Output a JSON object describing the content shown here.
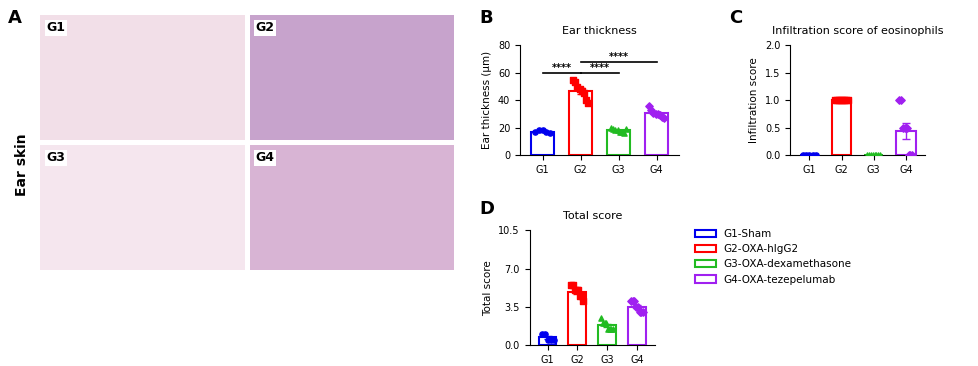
{
  "panel_A": {
    "label": "A",
    "row_label": "Ear skin",
    "images": [
      "G1",
      "G2",
      "G3",
      "G4"
    ]
  },
  "groups": [
    {
      "name": "G1-Sham",
      "color": "#0000ee",
      "marker": "circle"
    },
    {
      "name": "G2-OXA-hIgG2",
      "color": "#ff0000",
      "marker": "square"
    },
    {
      "name": "G3-OXA-dexamethasone",
      "color": "#22bb22",
      "marker": "triangle"
    },
    {
      "name": "G4-OXA-tezepelumab",
      "color": "#a020f0",
      "marker": "diamond"
    }
  ],
  "chart_data": [
    {
      "type": "bar",
      "panel": "B",
      "title": "Ear thickness",
      "y_label": "Ear thickness (μm)",
      "categories": [
        "G1",
        "G2",
        "G3",
        "G4"
      ],
      "values": [
        17.2,
        47.0,
        18.0,
        30.5
      ],
      "errors": [
        0.5,
        2.3,
        0.5,
        1.1
      ],
      "points": [
        [
          17,
          18,
          18,
          17,
          16
        ],
        [
          55,
          53,
          50,
          48,
          47,
          45,
          40,
          38
        ],
        [
          20,
          19,
          18,
          18,
          17,
          17,
          16,
          19
        ],
        [
          36,
          33,
          31,
          30,
          30,
          29,
          28,
          27
        ]
      ],
      "ylim": [
        0,
        80
      ],
      "yticks": [
        0,
        20,
        40,
        60,
        80
      ],
      "significance": [
        {
          "pair": [
            "G1",
            "G2"
          ],
          "label": "****"
        },
        {
          "pair": [
            "G2",
            "G3"
          ],
          "label": "****"
        },
        {
          "pair": [
            "G2",
            "G4"
          ],
          "label": "****"
        }
      ]
    },
    {
      "type": "bar",
      "panel": "C",
      "title": "Infiltration score of eosinophils",
      "y_label": "Infiltration score",
      "categories": [
        "G1",
        "G2",
        "G3",
        "G4"
      ],
      "values": [
        0.0,
        1.0,
        0.0,
        0.44
      ],
      "errors": [
        0.0,
        0.0,
        0.0,
        0.15
      ],
      "points": [
        [
          0,
          0,
          0,
          0,
          0
        ],
        [
          1,
          1,
          1,
          1,
          1,
          1,
          1,
          1
        ],
        [
          0,
          0,
          0,
          0,
          0,
          0,
          0,
          0
        ],
        [
          1,
          1,
          0.5,
          0.5,
          0.5,
          0,
          0,
          0
        ]
      ],
      "ylim": [
        0,
        2.0
      ],
      "yticks": [
        {
          "value": 0,
          "label": "0.0"
        },
        {
          "value": 0.5,
          "label": "0.5"
        },
        {
          "value": 1.0,
          "label": "1.0"
        },
        {
          "value": 1.5,
          "label": "1.5"
        },
        {
          "value": 2.0,
          "label": "2.0"
        }
      ]
    },
    {
      "type": "bar",
      "panel": "D",
      "title": "Total score",
      "y_label": "Total score",
      "categories": [
        "G1",
        "G2",
        "G3",
        "G4"
      ],
      "values": [
        0.7,
        4.9,
        1.8,
        3.5
      ],
      "errors": [
        0.12,
        0.2,
        0.12,
        0.15
      ],
      "points": [
        [
          1,
          1,
          0.5,
          0.5,
          0.5
        ],
        [
          5.5,
          5.5,
          5,
          5,
          5,
          4.5,
          4.5,
          4
        ],
        [
          2.5,
          2,
          2,
          2,
          1.5,
          1.5,
          1.5,
          1.5
        ],
        [
          4,
          4,
          4,
          3.5,
          3.5,
          3,
          3,
          3
        ]
      ],
      "ylim": [
        0,
        10.5
      ],
      "yticks": [
        {
          "value": 0,
          "label": "0.0"
        },
        {
          "value": 3.5,
          "label": "3.5"
        },
        {
          "value": 7.0,
          "label": "7.0"
        },
        {
          "value": 10.5,
          "label": "10.5"
        }
      ]
    }
  ]
}
